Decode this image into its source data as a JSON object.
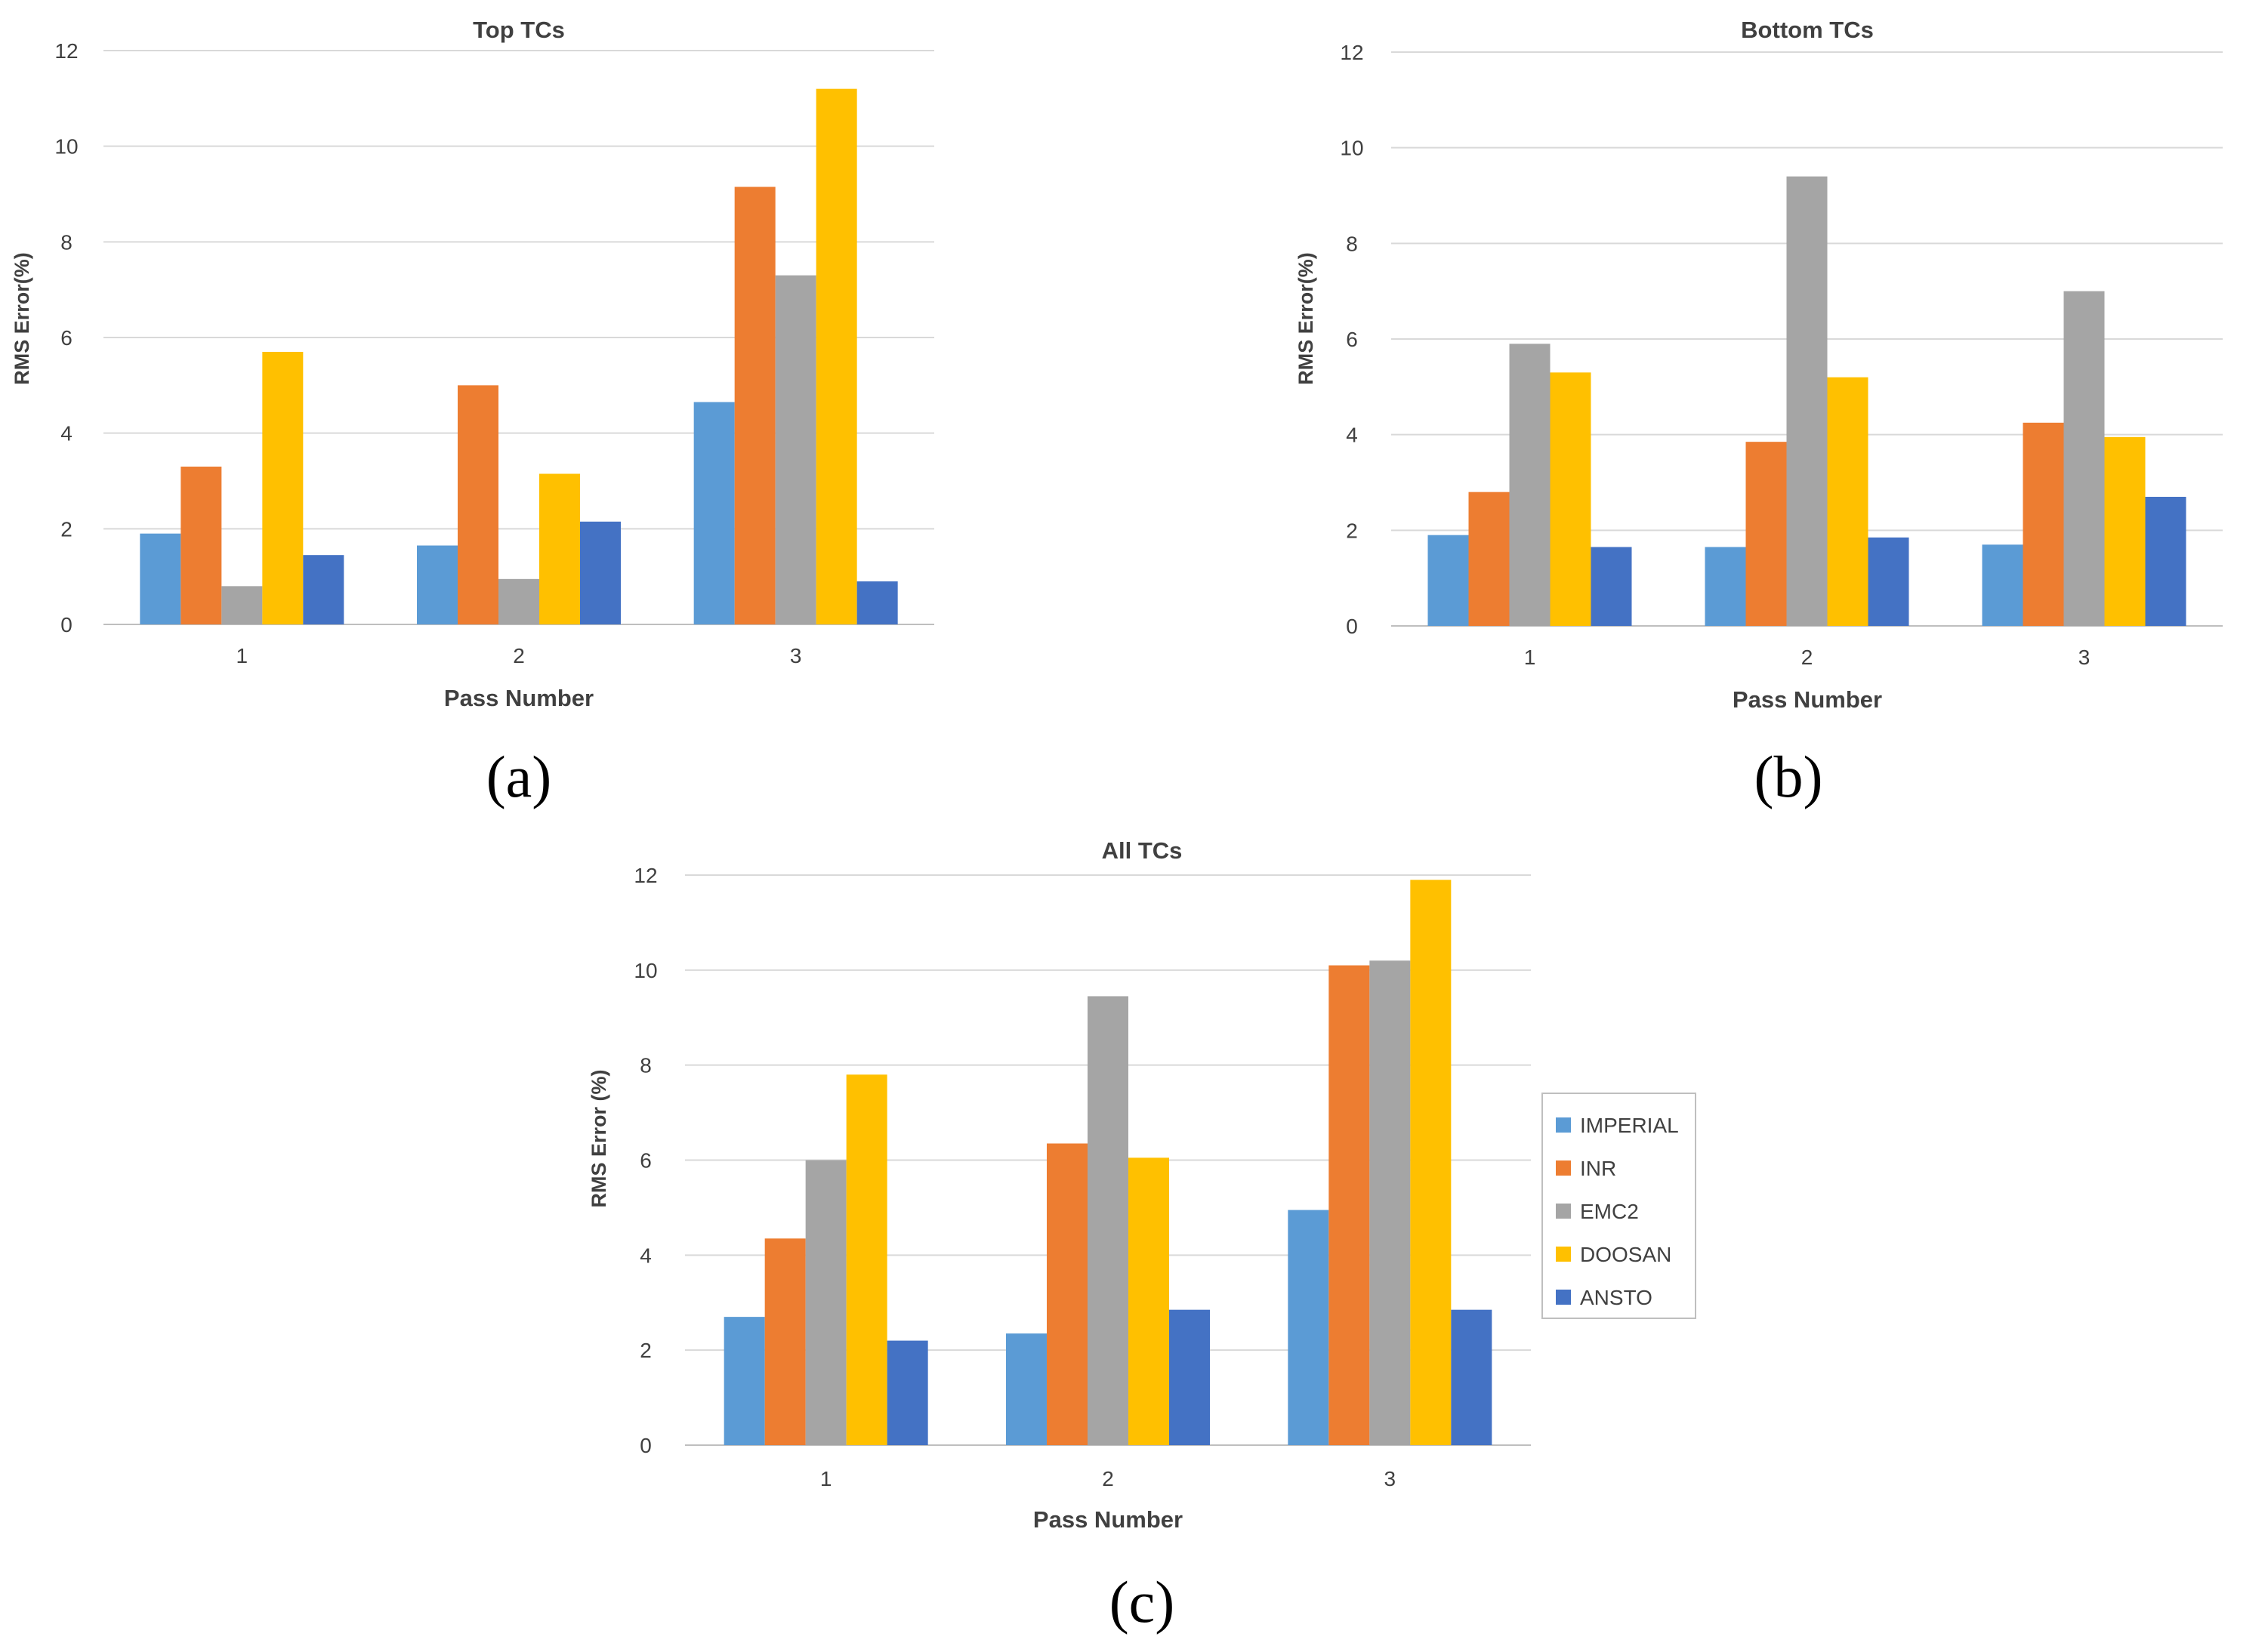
{
  "colors": {
    "IMPERIAL": "#5b9bd5",
    "INR": "#ed7d31",
    "EMC2": "#a5a5a5",
    "DOOSAN": "#ffc000",
    "ANSTO": "#4472c4",
    "grid": "#d9d9d9",
    "text": "#404040"
  },
  "legend": {
    "items": [
      "IMPERIAL",
      "INR",
      "EMC2",
      "DOOSAN",
      "ANSTO"
    ]
  },
  "chart_data": [
    {
      "type": "bar",
      "panel_label": "(a)",
      "title": "Top TCs",
      "xlabel": "Pass Number",
      "ylabel": "RMS Error(%)",
      "ylim": [
        0,
        12
      ],
      "yticks": [
        0,
        2,
        4,
        6,
        8,
        10,
        12
      ],
      "grid": true,
      "categories": [
        "1",
        "2",
        "3"
      ],
      "series": [
        {
          "name": "IMPERIAL",
          "values": [
            1.9,
            1.65,
            4.65
          ]
        },
        {
          "name": "INR",
          "values": [
            3.3,
            5.0,
            9.15
          ]
        },
        {
          "name": "EMC2",
          "values": [
            0.8,
            0.95,
            7.3
          ]
        },
        {
          "name": "DOOSAN",
          "values": [
            5.7,
            3.15,
            11.2
          ]
        },
        {
          "name": "ANSTO",
          "values": [
            1.45,
            2.15,
            0.9
          ]
        }
      ]
    },
    {
      "type": "bar",
      "panel_label": "(b)",
      "title": "Bottom TCs",
      "xlabel": "Pass Number",
      "ylabel": "RMS Error(%)",
      "ylim": [
        0,
        12
      ],
      "yticks": [
        0,
        2,
        4,
        6,
        8,
        10,
        12
      ],
      "grid": true,
      "categories": [
        "1",
        "2",
        "3"
      ],
      "series": [
        {
          "name": "IMPERIAL",
          "values": [
            1.9,
            1.65,
            1.7
          ]
        },
        {
          "name": "INR",
          "values": [
            2.8,
            3.85,
            4.25
          ]
        },
        {
          "name": "EMC2",
          "values": [
            5.9,
            9.4,
            7.0
          ]
        },
        {
          "name": "DOOSAN",
          "values": [
            5.3,
            5.2,
            3.95
          ]
        },
        {
          "name": "ANSTO",
          "values": [
            1.65,
            1.85,
            2.7
          ]
        }
      ]
    },
    {
      "type": "bar",
      "panel_label": "(c)",
      "title": "All TCs",
      "xlabel": "Pass Number",
      "ylabel": "RMS Error (%)",
      "ylim": [
        0,
        12
      ],
      "yticks": [
        0,
        2,
        4,
        6,
        8,
        10,
        12
      ],
      "grid": true,
      "legend_position": "right",
      "categories": [
        "1",
        "2",
        "3"
      ],
      "series": [
        {
          "name": "IMPERIAL",
          "values": [
            2.7,
            2.35,
            4.95
          ]
        },
        {
          "name": "INR",
          "values": [
            4.35,
            6.35,
            10.1
          ]
        },
        {
          "name": "EMC2",
          "values": [
            6.0,
            9.45,
            10.2
          ]
        },
        {
          "name": "DOOSAN",
          "values": [
            7.8,
            6.05,
            11.9
          ]
        },
        {
          "name": "ANSTO",
          "values": [
            2.2,
            2.85,
            2.85
          ]
        }
      ]
    }
  ]
}
